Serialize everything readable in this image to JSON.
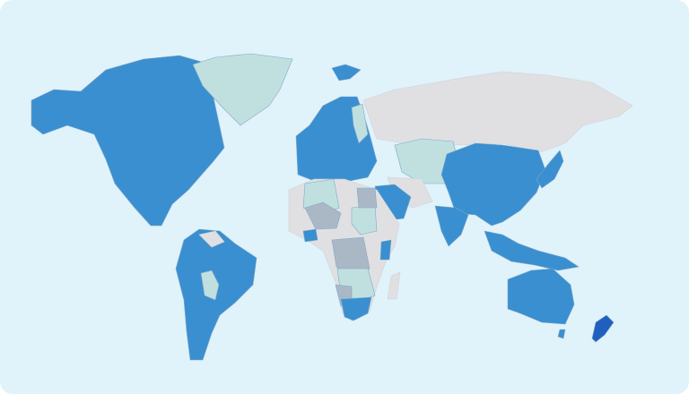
{
  "map": {
    "colors": {
      "background": "#e0f2fa",
      "high": "#3a8fd0",
      "highest": "#1f5fbf",
      "medium": "#c0e0df",
      "low": "#aab8c6",
      "no_data": "#e0e0e2"
    }
  }
}
